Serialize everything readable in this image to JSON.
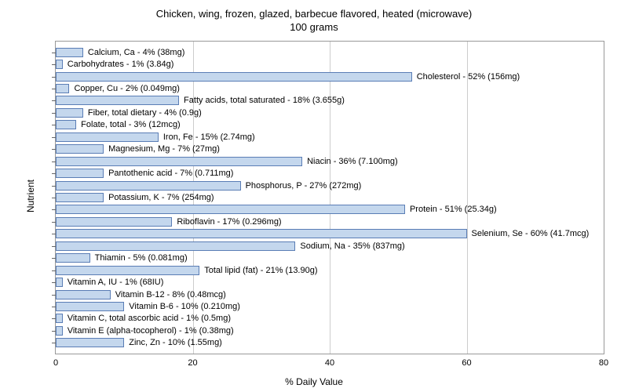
{
  "title_line1": "Chicken, wing, frozen, glazed, barbecue flavored, heated (microwave)",
  "title_line2": "100 grams",
  "y_axis_label": "Nutrient",
  "x_axis_label": "% Daily Value",
  "chart": {
    "type": "bar",
    "orientation": "horizontal",
    "xlim": [
      0,
      80
    ],
    "xtick_step": 20,
    "xticks": [
      0,
      20,
      40,
      60,
      80
    ],
    "bar_fill": "#c4d7ed",
    "bar_border": "#5a7db5",
    "grid_color": "#cccccc",
    "background": "#ffffff",
    "label_fontsize": 11,
    "title_fontsize": 13,
    "plot_border_color": "#999999",
    "nutrients": [
      {
        "label": "Calcium, Ca - 4% (38mg)",
        "value": 4
      },
      {
        "label": "Carbohydrates - 1% (3.84g)",
        "value": 1
      },
      {
        "label": "Cholesterol - 52% (156mg)",
        "value": 52
      },
      {
        "label": "Copper, Cu - 2% (0.049mg)",
        "value": 2
      },
      {
        "label": "Fatty acids, total saturated - 18% (3.655g)",
        "value": 18
      },
      {
        "label": "Fiber, total dietary - 4% (0.9g)",
        "value": 4
      },
      {
        "label": "Folate, total - 3% (12mcg)",
        "value": 3
      },
      {
        "label": "Iron, Fe - 15% (2.74mg)",
        "value": 15
      },
      {
        "label": "Magnesium, Mg - 7% (27mg)",
        "value": 7
      },
      {
        "label": "Niacin - 36% (7.100mg)",
        "value": 36
      },
      {
        "label": "Pantothenic acid - 7% (0.711mg)",
        "value": 7
      },
      {
        "label": "Phosphorus, P - 27% (272mg)",
        "value": 27
      },
      {
        "label": "Potassium, K - 7% (254mg)",
        "value": 7
      },
      {
        "label": "Protein - 51% (25.34g)",
        "value": 51
      },
      {
        "label": "Riboflavin - 17% (0.296mg)",
        "value": 17
      },
      {
        "label": "Selenium, Se - 60% (41.7mcg)",
        "value": 60
      },
      {
        "label": "Sodium, Na - 35% (837mg)",
        "value": 35
      },
      {
        "label": "Thiamin - 5% (0.081mg)",
        "value": 5
      },
      {
        "label": "Total lipid (fat) - 21% (13.90g)",
        "value": 21
      },
      {
        "label": "Vitamin A, IU - 1% (68IU)",
        "value": 1
      },
      {
        "label": "Vitamin B-12 - 8% (0.48mcg)",
        "value": 8
      },
      {
        "label": "Vitamin B-6 - 10% (0.210mg)",
        "value": 10
      },
      {
        "label": "Vitamin C, total ascorbic acid - 1% (0.5mg)",
        "value": 1
      },
      {
        "label": "Vitamin E (alpha-tocopherol) - 1% (0.38mg)",
        "value": 1
      },
      {
        "label": "Zinc, Zn - 10% (1.55mg)",
        "value": 10
      }
    ]
  }
}
